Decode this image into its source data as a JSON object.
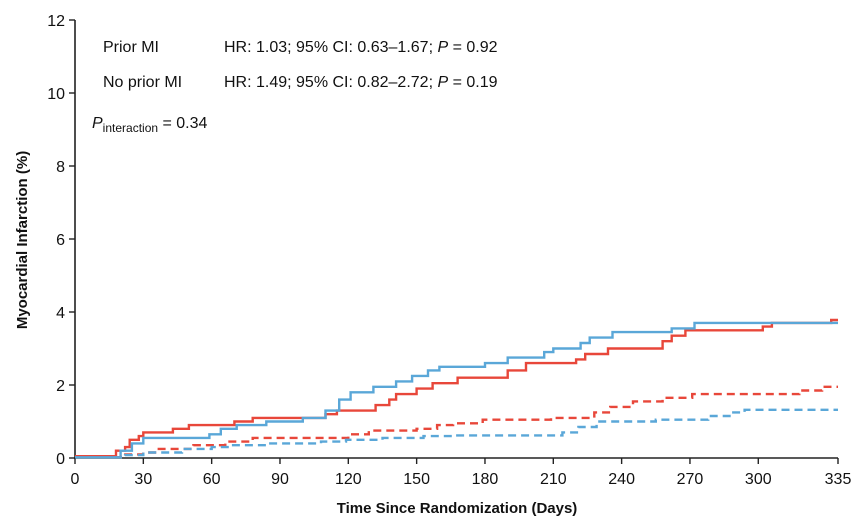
{
  "chart_data": {
    "type": "line",
    "xlabel": "Time Since Randomization (Days)",
    "ylabel": "Myocardial Infarction (%)",
    "xlim": [
      0,
      335
    ],
    "ylim": [
      0,
      12
    ],
    "xticks": [
      0,
      30,
      60,
      90,
      120,
      150,
      180,
      210,
      240,
      270,
      300,
      335
    ],
    "yticks": [
      0,
      2,
      4,
      6,
      8,
      10,
      12
    ],
    "grid": false,
    "colors": {
      "red": "#e8473a",
      "blue": "#5aa7d8"
    },
    "annotations": {
      "row1_label": "Prior MI",
      "row1_stats_a": "HR: 1.03; 95% CI: 0.63–1.67; ",
      "row1_p_italic": "P",
      "row1_stats_b": " = 0.92",
      "row2_label": "No prior MI",
      "row2_stats_a": "HR: 1.49; 95% CI: 0.82–2.72; ",
      "row2_p_italic": "P",
      "row2_stats_b": " = 0.19",
      "interaction_p": "P",
      "interaction_sub": "interaction",
      "interaction_value": " = 0.34"
    },
    "series": [
      {
        "color": "red",
        "style": "solid",
        "points": [
          [
            0,
            0.05
          ],
          [
            16,
            0.05
          ],
          [
            18,
            0.2
          ],
          [
            22,
            0.3
          ],
          [
            24,
            0.5
          ],
          [
            28,
            0.6
          ],
          [
            30,
            0.7
          ],
          [
            43,
            0.8
          ],
          [
            50,
            0.9
          ],
          [
            70,
            1.0
          ],
          [
            78,
            1.1
          ],
          [
            110,
            1.2
          ],
          [
            115,
            1.3
          ],
          [
            132,
            1.45
          ],
          [
            138,
            1.6
          ],
          [
            141,
            1.75
          ],
          [
            150,
            1.9
          ],
          [
            157,
            2.05
          ],
          [
            168,
            2.2
          ],
          [
            190,
            2.4
          ],
          [
            198,
            2.6
          ],
          [
            220,
            2.7
          ],
          [
            224,
            2.85
          ],
          [
            234,
            3.0
          ],
          [
            258,
            3.2
          ],
          [
            262,
            3.35
          ],
          [
            268,
            3.5
          ],
          [
            302,
            3.6
          ],
          [
            306,
            3.7
          ],
          [
            332,
            3.78
          ],
          [
            335,
            3.78
          ]
        ]
      },
      {
        "color": "blue",
        "style": "solid",
        "points": [
          [
            0,
            0.02
          ],
          [
            13,
            0.02
          ],
          [
            20,
            0.2
          ],
          [
            25,
            0.4
          ],
          [
            30,
            0.55
          ],
          [
            59,
            0.65
          ],
          [
            64,
            0.8
          ],
          [
            71,
            0.9
          ],
          [
            84,
            1.0
          ],
          [
            100,
            1.1
          ],
          [
            110,
            1.3
          ],
          [
            116,
            1.6
          ],
          [
            121,
            1.8
          ],
          [
            131,
            1.95
          ],
          [
            141,
            2.1
          ],
          [
            148,
            2.25
          ],
          [
            155,
            2.4
          ],
          [
            160,
            2.5
          ],
          [
            180,
            2.6
          ],
          [
            190,
            2.75
          ],
          [
            206,
            2.9
          ],
          [
            210,
            3.0
          ],
          [
            222,
            3.15
          ],
          [
            226,
            3.3
          ],
          [
            236,
            3.45
          ],
          [
            262,
            3.55
          ],
          [
            272,
            3.7
          ],
          [
            335,
            3.7
          ]
        ]
      },
      {
        "color": "red",
        "style": "dashed",
        "points": [
          [
            0,
            0.02
          ],
          [
            14,
            0.02
          ],
          [
            20,
            0.1
          ],
          [
            30,
            0.15
          ],
          [
            36,
            0.25
          ],
          [
            52,
            0.35
          ],
          [
            66,
            0.45
          ],
          [
            78,
            0.55
          ],
          [
            120,
            0.65
          ],
          [
            129,
            0.75
          ],
          [
            150,
            0.8
          ],
          [
            159,
            0.9
          ],
          [
            166,
            0.95
          ],
          [
            179,
            1.05
          ],
          [
            209,
            1.1
          ],
          [
            228,
            1.25
          ],
          [
            235,
            1.4
          ],
          [
            245,
            1.55
          ],
          [
            258,
            1.65
          ],
          [
            271,
            1.75
          ],
          [
            318,
            1.85
          ],
          [
            328,
            1.95
          ],
          [
            335,
            1.95
          ]
        ]
      },
      {
        "color": "blue",
        "style": "dashed",
        "points": [
          [
            0,
            0.02
          ],
          [
            12,
            0.02
          ],
          [
            22,
            0.08
          ],
          [
            30,
            0.15
          ],
          [
            47,
            0.25
          ],
          [
            60,
            0.3
          ],
          [
            67,
            0.35
          ],
          [
            85,
            0.4
          ],
          [
            108,
            0.45
          ],
          [
            119,
            0.5
          ],
          [
            135,
            0.55
          ],
          [
            153,
            0.6
          ],
          [
            166,
            0.62
          ],
          [
            214,
            0.7
          ],
          [
            221,
            0.85
          ],
          [
            229,
            1.0
          ],
          [
            255,
            1.05
          ],
          [
            278,
            1.15
          ],
          [
            288,
            1.25
          ],
          [
            294,
            1.32
          ],
          [
            335,
            1.32
          ]
        ]
      }
    ]
  }
}
